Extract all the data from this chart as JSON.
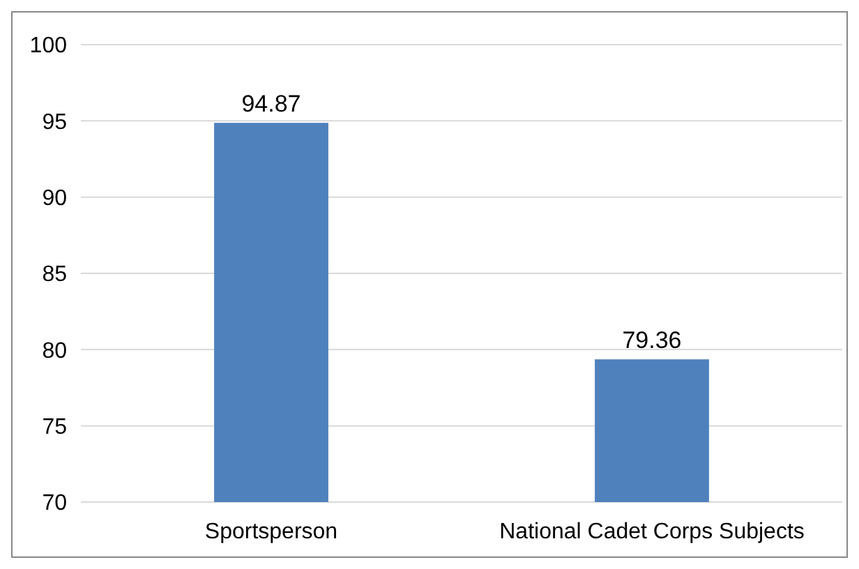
{
  "chart_data": {
    "type": "bar",
    "categories": [
      "Sportsperson",
      "National Cadet Corps Subjects"
    ],
    "values": [
      94.87,
      79.36
    ],
    "color": "#4f81bd",
    "ylim": [
      70,
      100
    ],
    "yticks": [
      70,
      75,
      80,
      85,
      90,
      95,
      100
    ],
    "grid": "y",
    "data_labels": true
  }
}
